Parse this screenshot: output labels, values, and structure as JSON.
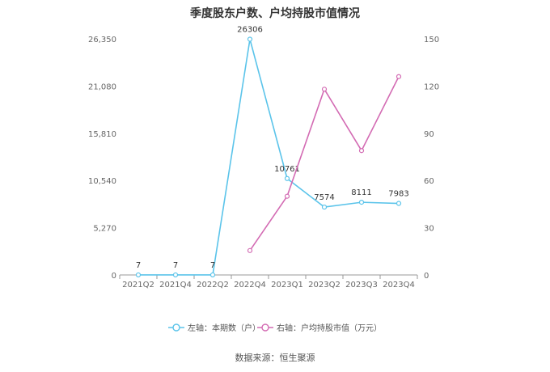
{
  "chart_data": {
    "type": "line",
    "title": "季度股东户数、户均持股市值情况",
    "categories": [
      "2021Q2",
      "2021Q4",
      "2022Q2",
      "2022Q4",
      "2023Q1",
      "2023Q2",
      "2023Q3",
      "2023Q4"
    ],
    "left_axis": {
      "ylim": [
        0,
        26350
      ],
      "ticks": [
        "0",
        "5,270",
        "10,540",
        "15,810",
        "21,080",
        "26,350"
      ]
    },
    "right_axis": {
      "ylim": [
        0,
        150
      ],
      "ticks": [
        "0",
        "30",
        "60",
        "90",
        "120",
        "150"
      ]
    },
    "series": [
      {
        "name": "左轴：本期数（户）",
        "axis": "left",
        "color": "#5bc4ea",
        "values": [
          7,
          7,
          7,
          26306,
          10761,
          7574,
          8111,
          7983
        ],
        "labels": [
          "7",
          "7",
          "7",
          "26306",
          "10761",
          "7574",
          "8111",
          "7983"
        ]
      },
      {
        "name": "右轴：户均持股市值（万元）",
        "axis": "right",
        "color": "#d36bb3",
        "values": [
          null,
          null,
          null,
          15.5,
          50,
          118,
          79,
          126
        ]
      }
    ],
    "grid": false,
    "legend": "bottom"
  },
  "source": "数据来源：恒生聚源"
}
